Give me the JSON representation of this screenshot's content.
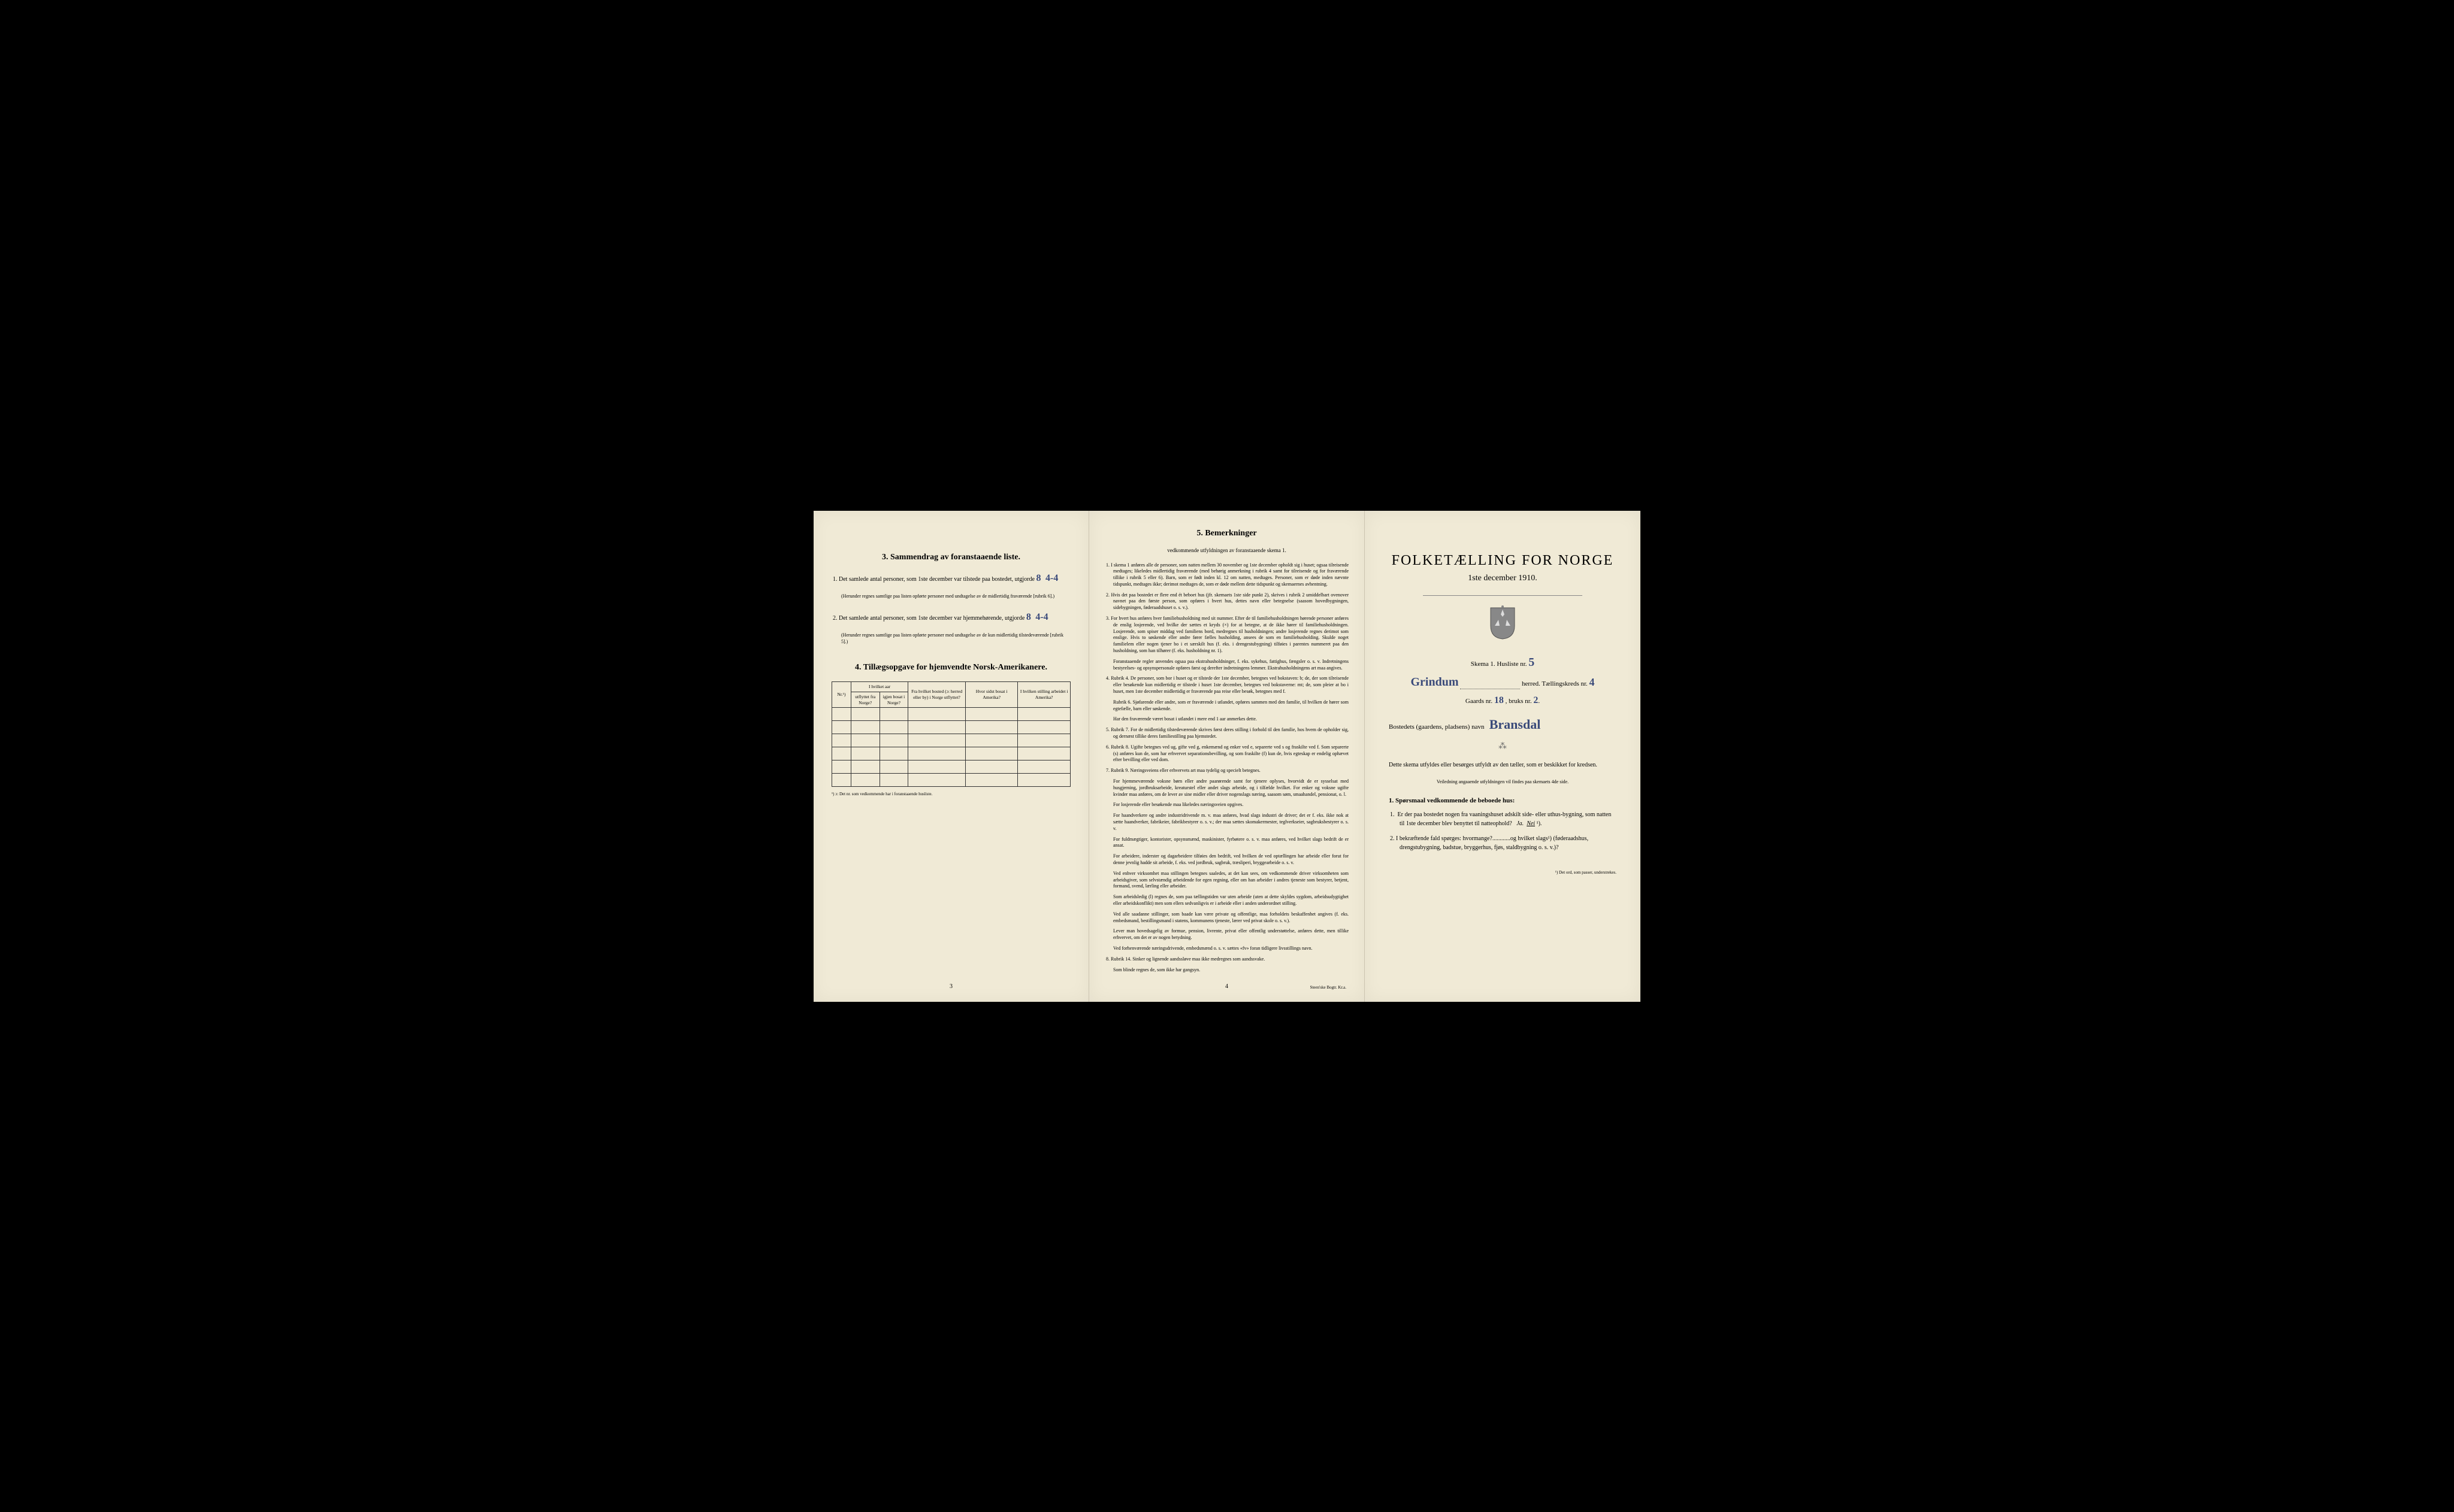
{
  "page_left": {
    "section3_title": "3.   Sammendrag av foranstaaende liste.",
    "item1_text": "1.  Det samlede antal personer, som 1ste december var tilstede paa bostedet, utgjorde",
    "item1_value": "8",
    "item1_extra": "4-4",
    "item1_note": "(Herunder regnes samtlige paa listen opførte personer med undtagelse av de midlertidig fraværende [rubrik 6].)",
    "item2_text": "2.  Det samlede antal personer, som 1ste december var hjemmehørende, utgjorde",
    "item2_value": "8",
    "item2_extra": "4-4",
    "item2_note": "(Herunder regnes samtlige paa listen opførte personer med undtagelse av de kun midlertidig tilstedeværende [rubrik 5].)",
    "section4_title": "4.  Tillægsopgave for hjemvendte Norsk-Amerikanere.",
    "table_headers": {
      "col1": "Nr.¹)",
      "col2_group": "I hvilket aar",
      "col2a": "utflyttet fra Norge?",
      "col2b": "igjen bosat i Norge?",
      "col3": "Fra hvilket bosted (ɔ: herred eller by) i Norge utflyttet?",
      "col4": "Hvor sidst bosat i Amerika?",
      "col5": "I hvilken stilling arbeidet i Amerika?"
    },
    "table_rows": 6,
    "table_footnote": "¹) ɔ: Det nr. som vedkommende har i foranstaaende husliste.",
    "page_number": "3"
  },
  "page_middle": {
    "title": "5.   Bemerkninger",
    "subtitle": "vedkommende utfyldningen av foranstaaende skema 1.",
    "remarks": [
      "1.  I skema 1 anføres alle de personer, som natten mellem 30 november og 1ste december opholdt sig i huset; ogsaa tilreisende medtages; likeledes midlertidig fraværende (med behørig anmerkning i rubrik 4 samt for tilreisende og for fraværende tillike i rubrik 5 eller 6). Barn, som er født inden kl. 12 om natten, medtages. Personer, som er døde inden nævnte tidspunkt, medtages ikke; derimot medtages de, som er døde mellem dette tidspunkt og skemaernes avhentning.",
      "2.  Hvis det paa bostedet er flere end ét beboet hus (jfr. skemaets 1ste side punkt 2), skrives i rubrik 2 umiddelbart ovenover navnet paa den første person, som opføres i hvert hus, dettes navn eller betegnelse (saasom hovedbygningen, sidebygningen, føderaadshuset o. s. v.).",
      "3.  For hvert hus anføres hver familiehusholdning med sit nummer. Efter de til familiehusholdningen hørende personer anføres de enslig losjerende, ved hvilke der sættes et kryds (×) for at betegne, at de ikke hører til familiehusholdningen. Losjerende, som spiser middag ved familiens bord, medregnes til husholdningen; andre losjerende regnes derimot som enslige. Hvis to søskende eller andre fører fælles husholding, ansees de som en familiehusholding. Skulde noget familielem eller nogen tjener bo i et særskilt hus (f. eks. i drengestubygning) tilføies i parentes nummeret paa den husholdning, som han tilhører (f. eks. husholdning nr. 1).",
      "Foranstaaende regler anvendes ogsaa paa ekstrahusholdninger, f. eks. sykehus, fattighus, fængsler o. s. v. Indretningens bestyrelses- og opsynspersonale opføres først og derefter indretningens lemmer. Ekstrahusholdningens art maa angives.",
      "4.  Rubrik 4. De personer, som bor i huset og er tilstede der 1ste december, betegnes ved bokstaven: b; de, der som tilreisende eller besøkende kun midlertidig er tilstede i huset 1ste december, betegnes ved bokstaverne: mt; de, som pleier at bo i huset, men 1ste december midlertidig er fraværende paa reise eller besøk, betegnes med f.",
      "Rubrik 6. Sjøfarende eller andre, som er fraværende i utlandet, opføres sammen med den familie, til hvilken de hører som egtefælle, barn eller søskende.",
      "Har den fraværende været bosat i utlandet i mere end 1 aar anmerkes dette.",
      "5.  Rubrik 7. For de midlertidig tilstedeværende skrives først deres stilling i forhold til den familie, hos hvem de opholder sig, og dernæst tillike deres familiestilling paa hjemstedet.",
      "6.  Rubrik 8. Ugifte betegnes ved ug, gifte ved g, enkemænd og enker ved e, separerte ved s og fraskilte ved f. Som separerte (s) anføres kun de, som har erhvervet separationsbevilling, og som fraskilte (f) kun de, hvis egteskap er endelig ophævet efter bevilling eller ved dom.",
      "7.  Rubrik 9. Næringsveiens eller erhvervets art maa tydelig og specielt betegnes.",
      "For hjemmeværende voksne børn eller andre paarørende samt for tjenere oplyses, hvorvidt de er sysselsat med husgjerning, jordbruksarbeide, kreaturstel eller andet slags arbeide, og i tilfælde hvilket. For enker og voksne ugifte kvinder maa anføres, om de lever av sine midler eller driver nogenslags næring, saasom søm, smaahandel, pensionat, o. l.",
      "For losjerende eller besøkende maa likeledes næringsveien opgives.",
      "For haandverkere og andre industridrivende m. v. maa anføres, hvad slags industri de driver; det er f. eks. ikke nok at sætte haandverker, fabrikeier, fabrikbestyrer o. s. v.; der maa sættes skomakermester, teglverkseier, sagbruksbestyrer o. s. v.",
      "For fuldmægtiger, kontorister, opsynsmænd, maskinister, fyrbøtere o. s. v. maa anføres, ved hvilket slags bedrift de er ansat.",
      "For arbeidere, inderster og dagarbeidere tilføies den bedrift, ved hvilken de ved optællingen har arbeide eller forut for denne jevnlig hadde sit arbeide, f. eks. ved jordbruk, sagbruk, træsliperi, bryggearbeide o. s. v.",
      "Ved enhver virksomhet maa stillingen betegnes saaledes, at det kan sees, om vedkommende driver virksomheten som arbeidsgiver, som selvstændig arbeidende for egen regning, eller om han arbeider i andres tjeneste som bestyrer, betjent, formand, svend, lærling eller arbeider.",
      "Som arbeidsledig (l) regnes de, som paa tællingstiden var uten arbeide (uten at dette skyldes sygdom, arbeidsudygtighet eller arbeidskonflikt) men som ellers sedvanligvis er i arbeide eller i anden underordnet stilling.",
      "Ved alle saadanne stillinger, som baade kan være private og offentlige, maa forholdets beskaffenhet angives (f. eks. embedsmand, bestillingsmand i statens, kommunens tjeneste, lærer ved privat skole o. s. v.).",
      "Lever man hovedsagelig av formue, pension, livrente, privat eller offentlig understøttelse, anføres dette, men tillike erhvervet, om det er av nogen betydning.",
      "Ved forhenværende næringsdrivende, embedsmænd o. s. v. sættes «fv» foran tidligere livsstillings navn.",
      "8.  Rubrik 14. Sinker og lignende aandssløve maa ikke medregnes som aandssvake.",
      "Som blinde regnes de, som ikke har gangsyn."
    ],
    "page_number": "4",
    "printer": "Steen'ske Bogtr.  Kr.a."
  },
  "page_right": {
    "main_title": "FOLKETÆLLING FOR NORGE",
    "date": "1ste december 1910.",
    "schema_label": "Skema 1.  Husliste nr.",
    "schema_value": "5",
    "herred_value": "Grindum",
    "herred_label": "herred.  Tællingskreds nr.",
    "kreds_value": "4",
    "gaards_label": "Gaards nr.",
    "gaards_value": "18",
    "bruks_label": ", bruks nr.",
    "bruks_value": "2",
    "bosted_label": "Bostedets (gaardens, pladsens) navn",
    "bosted_value": "Bransdal",
    "instruction_text": "Dette skema utfyldes eller besørges utfyldt av den tæller, som er beskikket for kredsen.",
    "instruction_sub": "Veiledning angaaende utfyldningen vil findes paa skemaets 4de side.",
    "q_heading": "1. Spørsmaal vedkommende de beboede hus:",
    "q1": "1.  Er der paa bostedet nogen fra vaaningshuset adskilt side- eller uthus-bygning, som natten til 1ste december blev benyttet til natteophold?   Ja.   Nei¹).",
    "q1_answer_underlined": "Nei",
    "q2": "2.  I bekræftende fald spørges: hvormange?............og hvilket slags¹) (føderaadshus, drengstubygning, badstue, bryggerhus, fjøs, staldbygning o. s. v.)?",
    "footnote": "¹) Det ord, som passer, understrekes."
  },
  "colors": {
    "paper": "#f0ead6",
    "ink": "#1a1a1a",
    "handwriting": "#3a4a7a",
    "background": "#000000"
  }
}
